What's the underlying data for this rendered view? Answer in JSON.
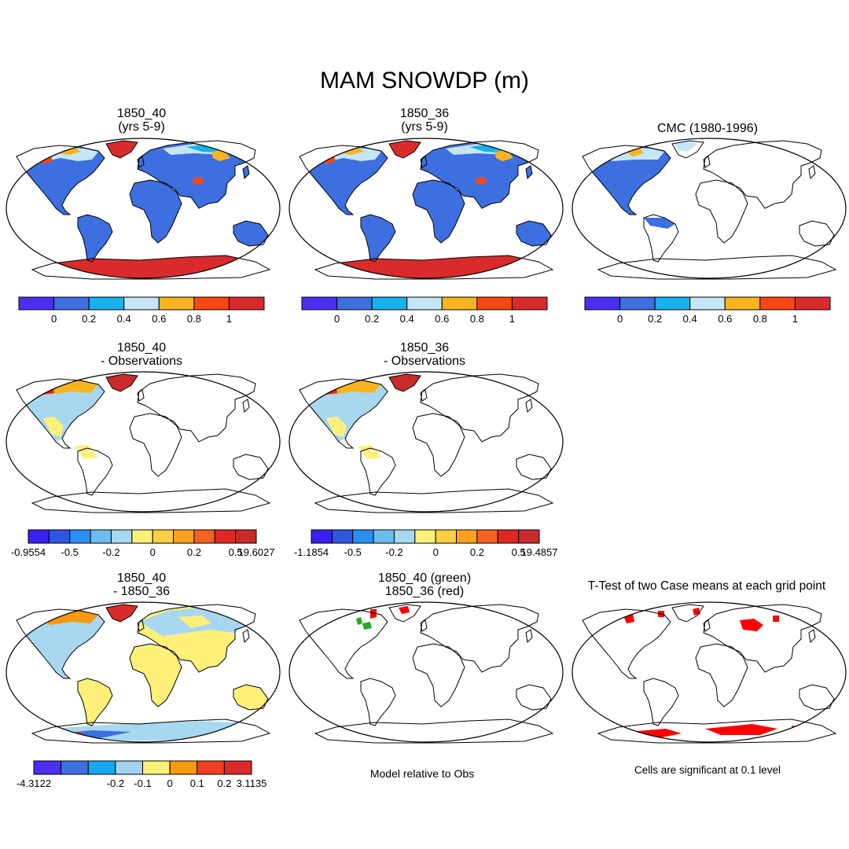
{
  "title": "MAM SNOWDP (m)",
  "panels": [
    {
      "title1": "1850_40",
      "title2": "(yrs 5-9)",
      "fill": "model"
    },
    {
      "title1": "1850_36",
      "title2": "(yrs 5-9)",
      "fill": "model"
    },
    {
      "title1": "CMC (1980-1996)",
      "title2": "",
      "fill": "obs"
    },
    {
      "title1": "1850_40",
      "title2": "- Observations",
      "fill": "diffobs"
    },
    {
      "title1": "1850_36",
      "title2": "- Observations",
      "fill": "diffobs"
    },
    {
      "title1": "1850_40",
      "title2": "- 1850_36",
      "fill": "diffcase"
    },
    {
      "title1": "1850_40 (green)",
      "title2": "1850_36 (red)",
      "fill": "rel"
    },
    {
      "title1": "T-Test of two Case means at each grid point",
      "title2": "",
      "fill": "ttest"
    }
  ],
  "colorbars": {
    "value": {
      "colors": [
        "#4a2ef2",
        "#3d6fe0",
        "#16b1ee",
        "#c6e6f6",
        "#f8b420",
        "#fb4613",
        "#d92b2b"
      ],
      "labels": [
        "0",
        "0.2",
        "0.4",
        "0.6",
        "0.8",
        "1"
      ]
    },
    "diff_obs": {
      "colors": [
        "#3a20f0",
        "#2e56e0",
        "#2a8ff0",
        "#6bbdf0",
        "#a8d8f0",
        "#fff07a",
        "#fcd040",
        "#fca020",
        "#f66020",
        "#e02820",
        "#c82a2a"
      ],
      "labels_40": [
        "-0.9554",
        "-0.5",
        "-0.2",
        "0",
        "0.2",
        "0.5",
        "19.6027"
      ],
      "labels_36": [
        "-1.1854",
        "-0.5",
        "-0.2",
        "0",
        "0.2",
        "0.5",
        "19.4857"
      ]
    },
    "diff_case": {
      "colors": [
        "#4a2ef2",
        "#3d6fe0",
        "#16a7ee",
        "#9fd3ee",
        "#fff07a",
        "#f89a10",
        "#f04020",
        "#d92b2b"
      ],
      "labels": [
        "-4.3122",
        "-0.2",
        "-0.1",
        "0",
        "0.1",
        "0.2",
        "3.1135"
      ]
    }
  },
  "notes": {
    "model_relative": "Model relative to Obs",
    "significance": "Cells are significant at 0.1 level"
  }
}
